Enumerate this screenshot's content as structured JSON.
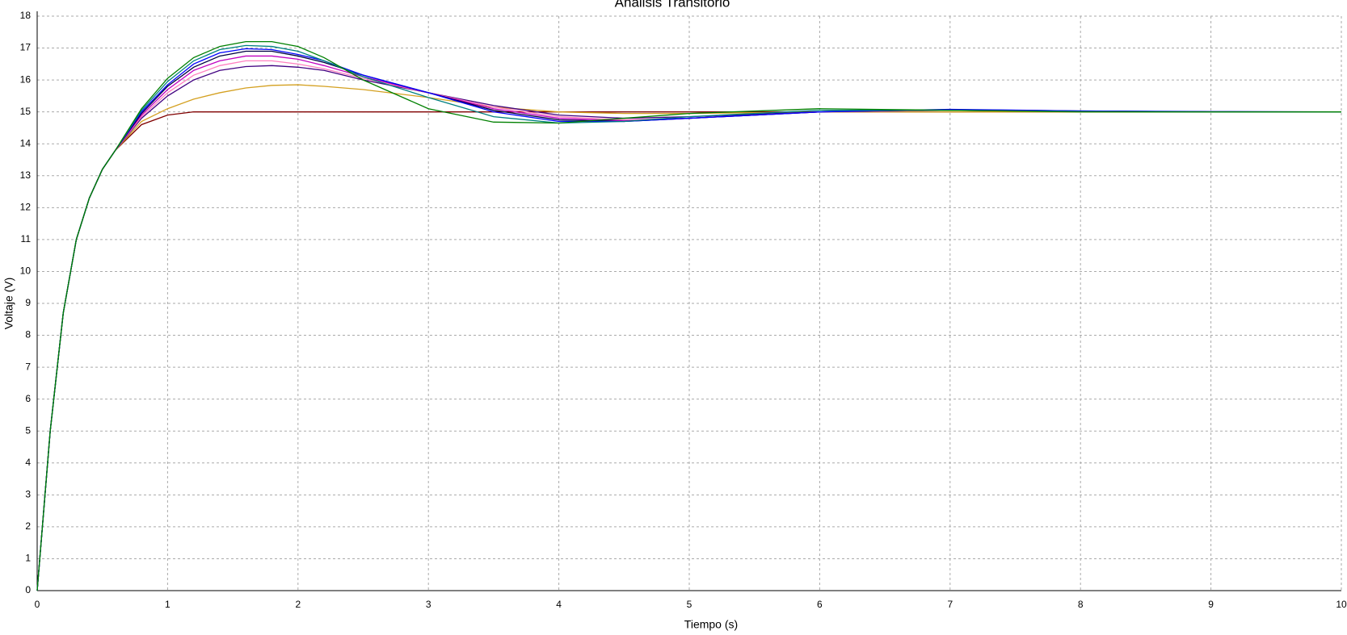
{
  "chart_data": {
    "type": "line",
    "title": "Analisis Transitorio",
    "x_label": "Tiempo (s)",
    "y_label": "Voltaje (V)",
    "x": [
      0,
      0.1,
      0.2,
      0.3,
      0.4,
      0.5,
      0.6,
      0.8,
      1,
      1.2,
      1.4,
      1.6,
      1.8,
      2,
      2.2,
      2.5,
      3,
      3.5,
      4,
      4.5,
      5,
      6,
      7,
      8,
      9,
      10
    ],
    "series": [
      {
        "color": "#800000",
        "values": [
          0,
          5,
          8.7,
          11,
          12.3,
          13.2,
          13.8,
          14.6,
          14.9,
          15,
          15,
          15,
          15,
          15,
          15,
          15,
          15,
          15,
          15,
          15,
          15,
          15,
          15,
          15,
          15,
          15
        ]
      },
      {
        "color": "#d4a020",
        "values": [
          0,
          5,
          8.7,
          11,
          12.3,
          13.2,
          13.8,
          14.7,
          15.1,
          15.4,
          15.6,
          15.75,
          15.83,
          15.85,
          15.8,
          15.7,
          15.45,
          15.15,
          15.0,
          14.95,
          14.95,
          15,
          15,
          15,
          15,
          15
        ]
      },
      {
        "color": "#400080",
        "values": [
          0,
          5,
          8.7,
          11,
          12.3,
          13.2,
          13.8,
          14.8,
          15.5,
          16,
          16.3,
          16.42,
          16.45,
          16.4,
          16.3,
          16.0,
          15.6,
          15.2,
          14.9,
          14.8,
          14.85,
          15,
          15.05,
          15.02,
          15,
          15
        ]
      },
      {
        "color": "#ff80c0",
        "values": [
          0,
          5,
          8.7,
          11,
          12.3,
          13.2,
          13.8,
          14.85,
          15.6,
          16.15,
          16.45,
          16.6,
          16.6,
          16.5,
          16.35,
          16.05,
          15.6,
          15.15,
          14.85,
          14.75,
          14.8,
          15,
          15.05,
          15.02,
          15,
          15
        ]
      },
      {
        "color": "#c000c0",
        "values": [
          0,
          5,
          8.7,
          11,
          12.3,
          13.2,
          13.8,
          14.9,
          15.7,
          16.3,
          16.6,
          16.75,
          16.75,
          16.65,
          16.45,
          16.1,
          15.6,
          15.1,
          14.8,
          14.72,
          14.8,
          15,
          15.06,
          15.02,
          15,
          15
        ]
      },
      {
        "color": "#000040",
        "values": [
          0,
          5,
          8.7,
          11,
          12.3,
          13.2,
          13.8,
          14.95,
          15.8,
          16.4,
          16.75,
          16.9,
          16.9,
          16.75,
          16.55,
          16.15,
          15.6,
          15.05,
          14.75,
          14.7,
          14.8,
          15,
          15.07,
          15.03,
          15,
          15
        ]
      },
      {
        "color": "#0000ff",
        "values": [
          0,
          5,
          8.7,
          11,
          12.3,
          13.2,
          13.8,
          15,
          15.85,
          16.5,
          16.85,
          16.98,
          16.95,
          16.8,
          16.6,
          16.15,
          15.6,
          15.0,
          14.7,
          14.7,
          14.8,
          15,
          15.08,
          15.03,
          15.01,
          15
        ]
      },
      {
        "color": "#008080",
        "values": [
          0,
          5,
          8.7,
          11,
          12.3,
          13.2,
          13.8,
          15.05,
          15.95,
          16.6,
          16.95,
          17.08,
          17.05,
          16.9,
          16.6,
          16.1,
          15.45,
          14.85,
          14.65,
          14.7,
          14.85,
          15.05,
          15.05,
          15.01,
          15,
          15
        ]
      },
      {
        "color": "#008000",
        "values": [
          0,
          5,
          8.7,
          11,
          12.3,
          13.2,
          13.8,
          15.1,
          16.05,
          16.7,
          17.05,
          17.2,
          17.2,
          17.05,
          16.7,
          16.0,
          15.1,
          14.68,
          14.65,
          14.8,
          14.95,
          15.1,
          15.05,
          15,
          15,
          15
        ]
      }
    ],
    "xlim": [
      0,
      10
    ],
    "xticks": [
      0,
      1,
      2,
      3,
      4,
      5,
      6,
      7,
      8,
      9,
      10
    ],
    "ylim": [
      0,
      18
    ],
    "yticks": [
      0,
      1,
      2,
      3,
      4,
      5,
      6,
      7,
      8,
      9,
      10,
      11,
      12,
      13,
      14,
      15,
      16,
      17,
      18
    ],
    "grid": true
  }
}
